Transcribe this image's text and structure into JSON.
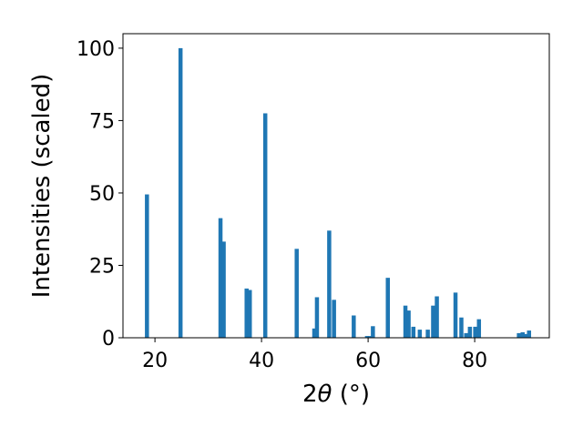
{
  "chart_data": {
    "type": "bar",
    "xlabel_main": "2",
    "xlabel_theta": "θ",
    "xlabel_unit": " (°)",
    "ylabel": "Intensities (scaled)",
    "xlim": [
      14,
      94
    ],
    "ylim": [
      0,
      105
    ],
    "xticks": [
      20,
      40,
      60,
      80
    ],
    "yticks": [
      0,
      25,
      50,
      75,
      100
    ],
    "bar_color": "#1f77b4",
    "grid": false,
    "bars": [
      {
        "x": 18.5,
        "y": 49.5
      },
      {
        "x": 24.8,
        "y": 100
      },
      {
        "x": 32.3,
        "y": 41.3
      },
      {
        "x": 32.9,
        "y": 33.2
      },
      {
        "x": 37.2,
        "y": 17.0
      },
      {
        "x": 37.8,
        "y": 16.5
      },
      {
        "x": 40.7,
        "y": 77.5
      },
      {
        "x": 46.6,
        "y": 30.7
      },
      {
        "x": 49.9,
        "y": 3.2
      },
      {
        "x": 50.4,
        "y": 14.0
      },
      {
        "x": 52.7,
        "y": 37.0
      },
      {
        "x": 53.6,
        "y": 13.1
      },
      {
        "x": 57.3,
        "y": 7.7
      },
      {
        "x": 59.8,
        "y": 0.6
      },
      {
        "x": 60.3,
        "y": 0.6
      },
      {
        "x": 60.9,
        "y": 4.0
      },
      {
        "x": 63.7,
        "y": 20.7
      },
      {
        "x": 67.0,
        "y": 11.1
      },
      {
        "x": 67.6,
        "y": 9.4
      },
      {
        "x": 68.5,
        "y": 3.8
      },
      {
        "x": 69.7,
        "y": 2.8
      },
      {
        "x": 71.2,
        "y": 2.8
      },
      {
        "x": 72.2,
        "y": 11.1
      },
      {
        "x": 72.9,
        "y": 14.3
      },
      {
        "x": 76.4,
        "y": 15.6
      },
      {
        "x": 77.5,
        "y": 7.0
      },
      {
        "x": 78.4,
        "y": 1.6
      },
      {
        "x": 79.1,
        "y": 3.8
      },
      {
        "x": 80.1,
        "y": 3.8
      },
      {
        "x": 80.8,
        "y": 6.4
      },
      {
        "x": 88.3,
        "y": 1.6
      },
      {
        "x": 89.0,
        "y": 1.9
      },
      {
        "x": 89.6,
        "y": 1.3
      },
      {
        "x": 90.2,
        "y": 2.5
      }
    ]
  }
}
